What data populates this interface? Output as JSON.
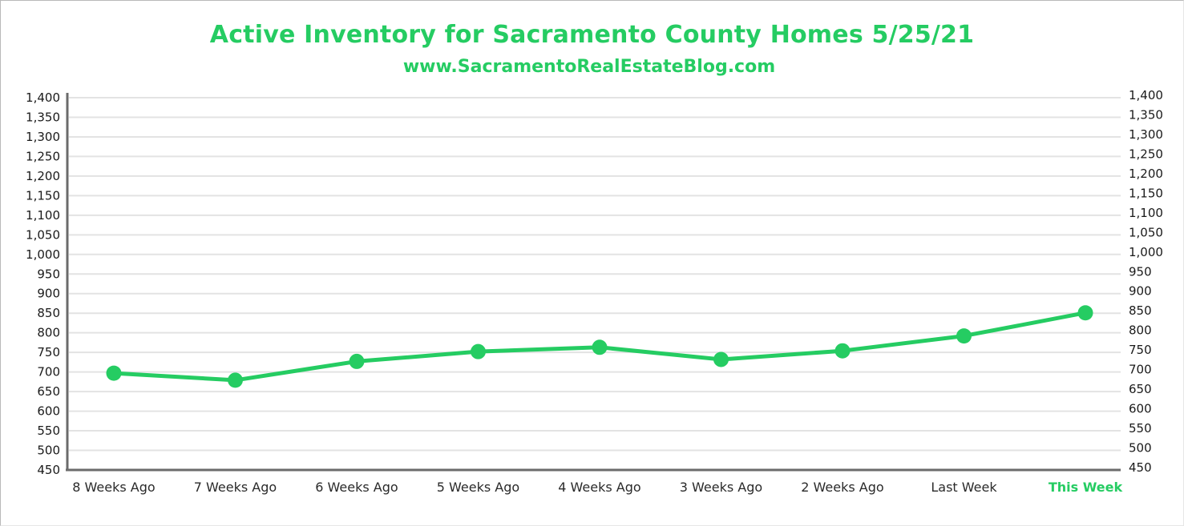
{
  "chart_data": {
    "type": "line",
    "title": "Active Inventory for Sacramento County Homes 5/25/21",
    "subtitle": "www.SacramentoRealEstateBlog.com",
    "categories": [
      "8 Weeks Ago",
      "7 Weeks Ago",
      "6 Weeks Ago",
      "5 Weeks Ago",
      "4 Weeks Ago",
      "3 Weeks Ago",
      "2 Weeks Ago",
      "Last Week",
      "This Week"
    ],
    "highlighted_category": "This Week",
    "series": [
      {
        "values": [
          697,
          679,
          727,
          752,
          763,
          732,
          754,
          792,
          851
        ],
        "color": "#25cc62"
      }
    ],
    "ylim": [
      450,
      1400
    ],
    "yticks": [
      450,
      500,
      550,
      600,
      650,
      700,
      750,
      800,
      850,
      900,
      950,
      1000,
      1050,
      1100,
      1150,
      1200,
      1250,
      1300,
      1350,
      1400
    ],
    "ytick_labels": [
      "450",
      "500",
      "550",
      "600",
      "650",
      "700",
      "750",
      "800",
      "850",
      "900",
      "950",
      "1,000",
      "1,050",
      "1,100",
      "1,150",
      "1,200",
      "1,250",
      "1,300",
      "1,350",
      "1,400"
    ],
    "right_axis": true,
    "grid": true,
    "xlabel": "",
    "ylabel": ""
  },
  "colors": {
    "accent": "#25cc62",
    "axis": "#6b6b6b",
    "grid": "#e3e3e3",
    "text": "#1a1a1a"
  }
}
